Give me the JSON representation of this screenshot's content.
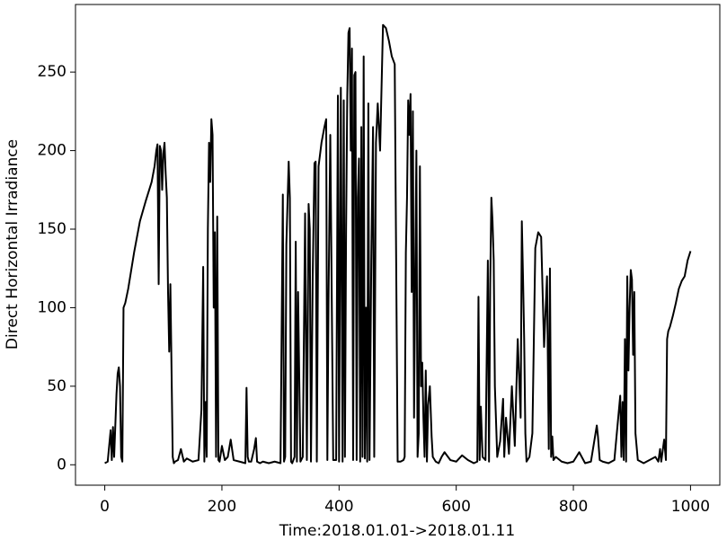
{
  "chart_data": {
    "type": "line",
    "xlabel": "Time:2018.01.01->2018.01.11",
    "ylabel": "Direct Horizontal Irradiance",
    "color": "#000000",
    "xlim": [
      -50,
      1050
    ],
    "xticks": [
      0,
      200,
      400,
      600,
      800,
      1000
    ],
    "ylim": [
      -13,
      293
    ],
    "yticks": [
      0,
      50,
      100,
      150,
      200,
      250
    ],
    "grid": false,
    "x": [
      0,
      5,
      10,
      12,
      14,
      16,
      18,
      20,
      22,
      24,
      26,
      28,
      30,
      32,
      35,
      40,
      50,
      60,
      70,
      80,
      85,
      88,
      90,
      92,
      94,
      96,
      98,
      100,
      102,
      104,
      106,
      108,
      110,
      112,
      114,
      116,
      118,
      120,
      125,
      130,
      135,
      140,
      150,
      160,
      165,
      168,
      170,
      172,
      174,
      176,
      178,
      180,
      182,
      184,
      186,
      188,
      190,
      192,
      194,
      196,
      200,
      205,
      210,
      215,
      220,
      230,
      240,
      242,
      244,
      246,
      250,
      255,
      258,
      260,
      265,
      270,
      280,
      290,
      300,
      304,
      306,
      308,
      310,
      314,
      316,
      318,
      320,
      324,
      326,
      328,
      330,
      334,
      338,
      342,
      345,
      348,
      350,
      352,
      355,
      358,
      360,
      362,
      365,
      370,
      375,
      378,
      380,
      382,
      385,
      390,
      395,
      398,
      400,
      403,
      406,
      408,
      410,
      412,
      414,
      416,
      418,
      420,
      422,
      424,
      426,
      428,
      430,
      432,
      434,
      436,
      438,
      440,
      442,
      444,
      446,
      448,
      450,
      452,
      455,
      458,
      460,
      463,
      466,
      470,
      475,
      480,
      485,
      490,
      495,
      500,
      505,
      510,
      512,
      514,
      516,
      518,
      520,
      522,
      524,
      526,
      528,
      530,
      532,
      534,
      536,
      538,
      540,
      542,
      544,
      546,
      548,
      550,
      552,
      555,
      558,
      560,
      565,
      570,
      575,
      580,
      590,
      600,
      610,
      620,
      630,
      636,
      638,
      640,
      642,
      645,
      650,
      654,
      656,
      658,
      660,
      662,
      664,
      666,
      670,
      675,
      680,
      682,
      685,
      690,
      695,
      700,
      705,
      710,
      712,
      714,
      716,
      718,
      720,
      725,
      730,
      735,
      740,
      745,
      750,
      755,
      758,
      760,
      762,
      764,
      766,
      770,
      780,
      790,
      800,
      810,
      820,
      830,
      840,
      842,
      845,
      850,
      860,
      870,
      880,
      882,
      884,
      886,
      888,
      890,
      892,
      894,
      896,
      898,
      900,
      902,
      904,
      906,
      910,
      920,
      930,
      940,
      945,
      948,
      950,
      955,
      958,
      960,
      962,
      965,
      970,
      975,
      980,
      985,
      990,
      995,
      1000
    ],
    "values": [
      1,
      2,
      22,
      3,
      24,
      5,
      25,
      45,
      58,
      62,
      50,
      5,
      2,
      100,
      103,
      112,
      135,
      155,
      168,
      180,
      190,
      200,
      204,
      115,
      203,
      200,
      175,
      198,
      205,
      185,
      170,
      110,
      72,
      115,
      60,
      5,
      1,
      2,
      3,
      10,
      2,
      4,
      2,
      3,
      35,
      126,
      2,
      40,
      5,
      150,
      205,
      180,
      220,
      210,
      100,
      148,
      5,
      158,
      3,
      2,
      12,
      3,
      5,
      16,
      3,
      2,
      1,
      49,
      5,
      2,
      2,
      10,
      17,
      2,
      1,
      2,
      1,
      2,
      1,
      172,
      2,
      5,
      140,
      193,
      170,
      2,
      1,
      5,
      142,
      2,
      110,
      2,
      5,
      160,
      3,
      166,
      150,
      2,
      120,
      192,
      193,
      2,
      190,
      205,
      215,
      220,
      3,
      105,
      210,
      3,
      3,
      235,
      2,
      240,
      2,
      232,
      5,
      150,
      235,
      275,
      278,
      200,
      265,
      3,
      248,
      250,
      3,
      170,
      195,
      2,
      215,
      5,
      260,
      4,
      100,
      2,
      230,
      3,
      130,
      215,
      5,
      205,
      230,
      200,
      280,
      278,
      270,
      260,
      255,
      2,
      2,
      3,
      5,
      135,
      170,
      232,
      210,
      236,
      110,
      225,
      30,
      120,
      200,
      5,
      20,
      190,
      50,
      65,
      30,
      5,
      60,
      2,
      38,
      50,
      18,
      5,
      2,
      1,
      5,
      8,
      3,
      2,
      6,
      3,
      1,
      2,
      107,
      3,
      37,
      5,
      3,
      130,
      2,
      115,
      170,
      155,
      130,
      50,
      5,
      15,
      42,
      5,
      30,
      7,
      50,
      12,
      80,
      30,
      155,
      120,
      80,
      20,
      2,
      5,
      20,
      138,
      148,
      145,
      75,
      120,
      10,
      125,
      5,
      18,
      3,
      5,
      2,
      1,
      2,
      8,
      1,
      2,
      25,
      18,
      3,
      2,
      1,
      3,
      44,
      5,
      40,
      3,
      80,
      2,
      120,
      60,
      100,
      124,
      118,
      70,
      110,
      20,
      3,
      1,
      3,
      5,
      2,
      10,
      2,
      16,
      3,
      80,
      85,
      88,
      95,
      103,
      112,
      117,
      120,
      130,
      136
    ]
  }
}
